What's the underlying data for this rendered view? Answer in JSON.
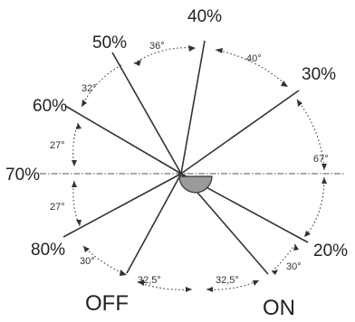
{
  "diagram": {
    "positions": [
      {
        "id": "p40",
        "label": "40%"
      },
      {
        "id": "p50",
        "label": "50%"
      },
      {
        "id": "p30",
        "label": "30%"
      },
      {
        "id": "p60",
        "label": "60%"
      },
      {
        "id": "p70",
        "label": "70%"
      },
      {
        "id": "p80",
        "label": "80%"
      },
      {
        "id": "p20",
        "label": "20%"
      },
      {
        "id": "poff",
        "label": "OFF"
      },
      {
        "id": "pon",
        "label": "ON"
      }
    ],
    "angles": [
      {
        "id": "a36",
        "label": "36°"
      },
      {
        "id": "a40",
        "label": "40°"
      },
      {
        "id": "a32",
        "label": "32°"
      },
      {
        "id": "a67",
        "label": "67°"
      },
      {
        "id": "a27u",
        "label": "27°"
      },
      {
        "id": "a27l",
        "label": "27°"
      },
      {
        "id": "a30l",
        "label": "30°"
      },
      {
        "id": "a30r",
        "label": "30°"
      },
      {
        "id": "a325l",
        "label": "32,5°"
      },
      {
        "id": "a325r",
        "label": "32,5°"
      }
    ]
  }
}
